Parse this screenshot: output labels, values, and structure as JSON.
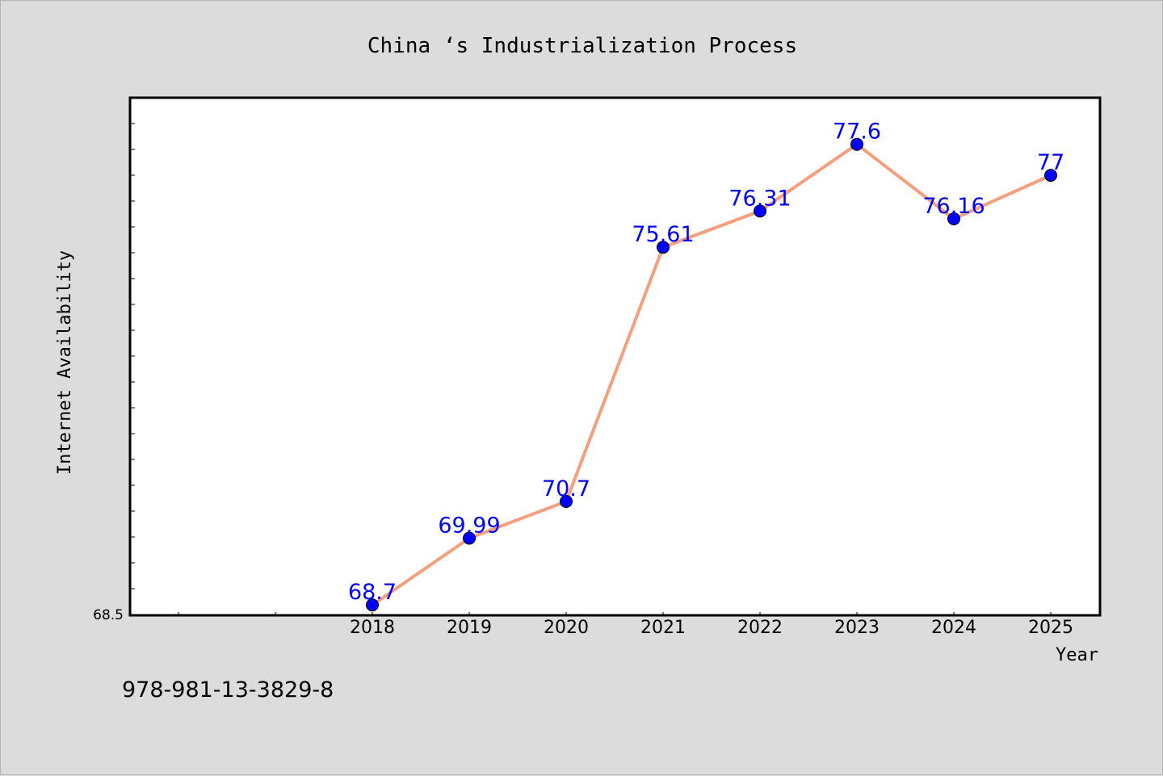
{
  "chart_data": {
    "type": "line",
    "title": "China ‘s Industrialization Process",
    "xlabel": "Year",
    "ylabel": "Internet Availability",
    "categories": [
      "2018",
      "2019",
      "2020",
      "2021",
      "2022",
      "2023",
      "2024",
      "2025"
    ],
    "series": [
      {
        "values": [
          68.7,
          69.99,
          70.7,
          75.61,
          76.31,
          77.6,
          76.16,
          77
        ],
        "labels": [
          "68.7",
          "69.99",
          "70.7",
          "75.61",
          "76.31",
          "77.6",
          "76.16",
          "77"
        ]
      }
    ],
    "ytick_label": "68.5",
    "ylim": [
      68.5,
      78.5
    ],
    "grid": false,
    "colors": {
      "line": "#f4a07e",
      "marker": "#0000ff",
      "data_label": "#0000ff",
      "axis": "#000000",
      "background": "#dcdcdc",
      "plot_background": "#ffffff"
    }
  },
  "footer": {
    "isbn": "978-981-13-3829-8"
  }
}
